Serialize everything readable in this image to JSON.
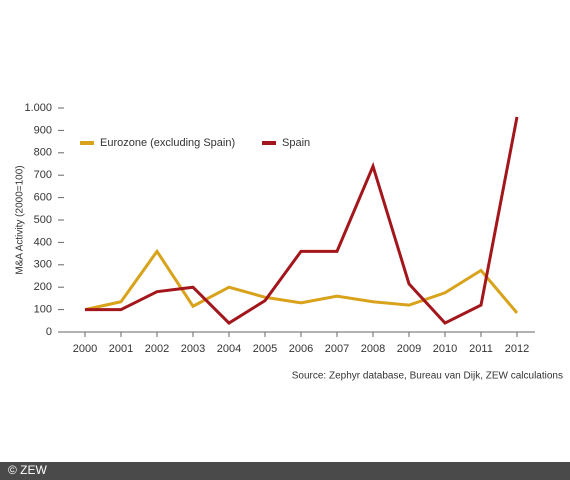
{
  "chart_data": {
    "type": "line",
    "y_label": "M&A Activity (2000=100)",
    "source": "Source: Zephyr database, Bureau van Dijk, ZEW calculations",
    "categories": [
      "2000",
      "2001",
      "2002",
      "2003",
      "2004",
      "2005",
      "2006",
      "2007",
      "2008",
      "2009",
      "2010",
      "2011",
      "2012"
    ],
    "series": [
      {
        "name": "Eurozone (excluding Spain)",
        "color": "#d9a21b",
        "values": [
          100,
          135,
          360,
          115,
          200,
          155,
          130,
          160,
          135,
          120,
          175,
          275,
          85
        ]
      },
      {
        "name": "Spain",
        "color": "#a3171c",
        "values": [
          100,
          100,
          180,
          200,
          40,
          140,
          360,
          360,
          740,
          215,
          40,
          120,
          960
        ]
      }
    ],
    "ylim": [
      0,
      1000
    ],
    "yticks": [
      0,
      100,
      200,
      300,
      400,
      500,
      600,
      700,
      800,
      900,
      {
        "value": 1000,
        "label": "1.000"
      }
    ],
    "legend": "top"
  },
  "footer": "© ZEW"
}
